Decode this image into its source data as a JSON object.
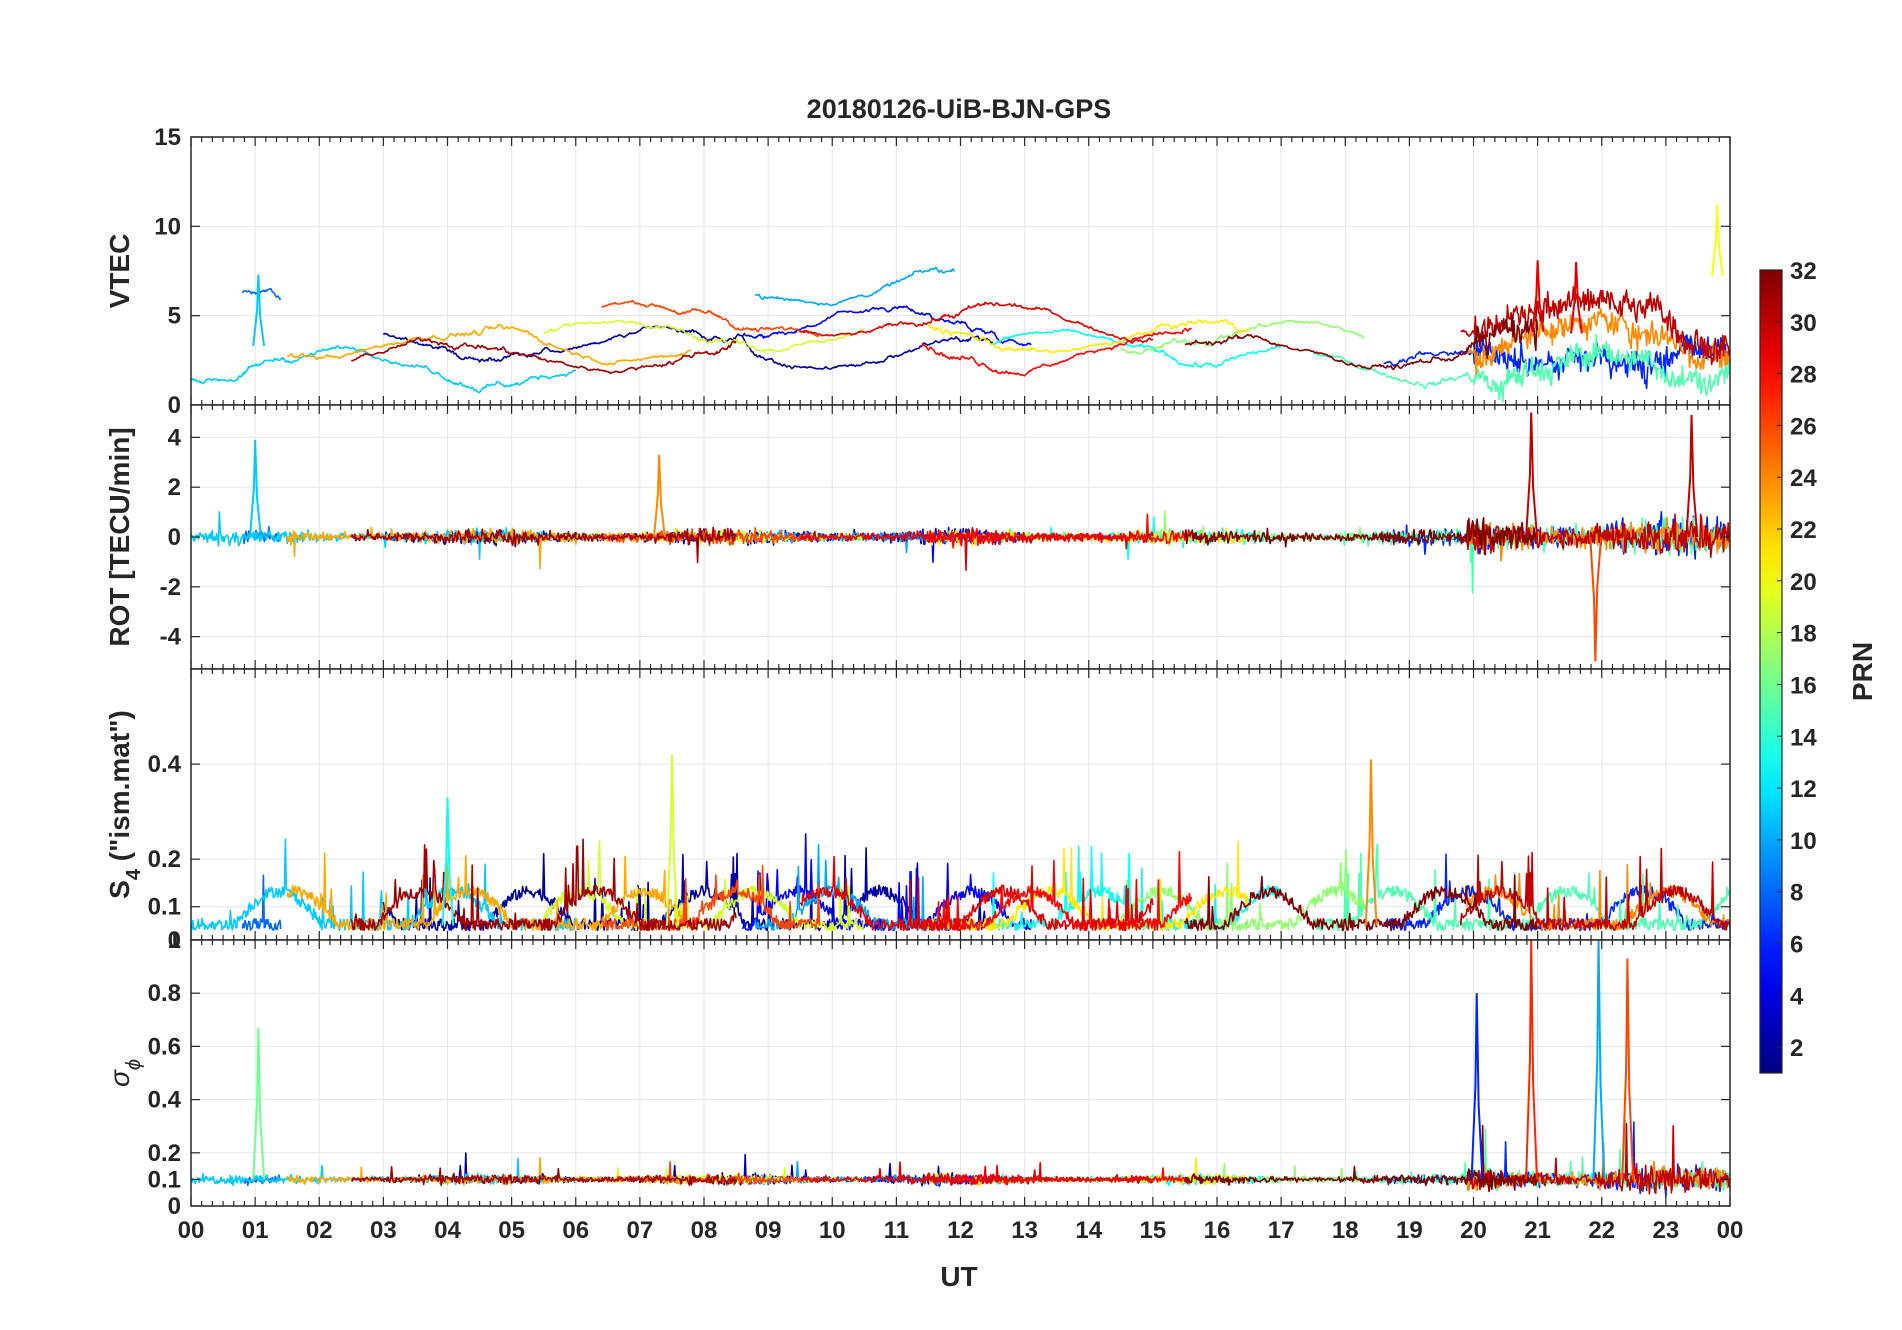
{
  "chart_data": {
    "type": "line",
    "title": "20180126-UiB-BJN-GPS",
    "xlabel": "UT",
    "x_tick_labels": [
      "00",
      "01",
      "02",
      "03",
      "04",
      "05",
      "06",
      "07",
      "08",
      "09",
      "10",
      "11",
      "12",
      "13",
      "14",
      "15",
      "16",
      "17",
      "18",
      "19",
      "20",
      "21",
      "22",
      "23",
      "00"
    ],
    "xlim": [
      0,
      24
    ],
    "grid": true,
    "panels": [
      {
        "name": "vtec",
        "ylabel": "VTEC",
        "ylim": [
          0,
          15
        ],
        "yticks": [
          0,
          5,
          10,
          15
        ],
        "ytick_labels": [
          "0",
          "5",
          "10",
          "15"
        ]
      },
      {
        "name": "rot",
        "ylabel": "ROT [TECU/min]",
        "ylim": [
          -5.3,
          5.3
        ],
        "yticks": [
          -4,
          -2,
          0,
          2,
          4
        ],
        "ytick_labels": [
          "-4",
          "-2",
          "0",
          "2",
          "4"
        ]
      },
      {
        "name": "s4",
        "ylabel_main": "S",
        "ylabel_sub": "4",
        "ylabel_rest": " (\"ism.mat\")",
        "ylim": [
          0.03,
          0.6
        ],
        "yticks": [
          0.1,
          0.2,
          0.4
        ],
        "ytick_labels": [
          "0.1",
          "0.2",
          "0.4"
        ],
        "bottom_label": "0"
      },
      {
        "name": "sigma_phi",
        "ylabel_main": "σ",
        "ylabel_sub": "ϕ",
        "ylim": [
          0,
          1
        ],
        "yticks": [
          0,
          0.1,
          0.2,
          0.4,
          0.6,
          0.8,
          1
        ],
        "ytick_labels": [
          "0",
          "0.1",
          "0.2",
          "0.4",
          "0.6",
          "0.8",
          "1"
        ]
      }
    ],
    "colorbar": {
      "label": "PRN",
      "colormap": "jet",
      "range": [
        1,
        32
      ],
      "ticks": [
        2,
        4,
        6,
        8,
        10,
        12,
        14,
        16,
        18,
        20,
        22,
        24,
        26,
        28,
        30,
        32
      ],
      "tick_labels": [
        "2",
        "4",
        "6",
        "8",
        "10",
        "12",
        "14",
        "16",
        "18",
        "20",
        "22",
        "24",
        "26",
        "28",
        "30",
        "32"
      ]
    },
    "series": [
      {
        "name": "PRN 2",
        "prn": 2,
        "start": 3.0,
        "end": 12.5,
        "vtec": 3.2
      },
      {
        "name": "PRN 5",
        "prn": 5,
        "start": 8.6,
        "end": 13.1,
        "vtec": 4.6
      },
      {
        "name": "PRN 6",
        "prn": 6,
        "start": 18.6,
        "end": 24.0,
        "vtec": 2.6
      },
      {
        "name": "PRN 8",
        "prn": 8,
        "start": 0.8,
        "end": 1.4,
        "vtec": 5.5
      },
      {
        "name": "PRN 10",
        "prn": 10,
        "start": 8.8,
        "end": 11.9,
        "vtec": 6.6
      },
      {
        "name": "PRN 11",
        "prn": 11,
        "start": 0.0,
        "end": 6.0,
        "vtec": 2.3
      },
      {
        "name": "PRN 13",
        "prn": 13,
        "start": 12.5,
        "end": 17.0,
        "vtec": 3.1
      },
      {
        "name": "PRN 15",
        "prn": 15,
        "start": 17.5,
        "end": 24.0,
        "vtec": 2.4
      },
      {
        "name": "PRN 17",
        "prn": 17,
        "start": 14.5,
        "end": 18.3,
        "vtec": 3.9
      },
      {
        "name": "PRN 19",
        "prn": 19,
        "start": 5.5,
        "end": 10.5,
        "vtec": 4.0
      },
      {
        "name": "PRN 21",
        "prn": 21,
        "start": 11.5,
        "end": 16.5,
        "vtec": 3.7
      },
      {
        "name": "PRN 23",
        "prn": 23,
        "start": 1.5,
        "end": 7.8,
        "vtec": 3.4
      },
      {
        "name": "PRN 24",
        "prn": 24,
        "start": 19.9,
        "end": 24.0,
        "vtec": 3.6
      },
      {
        "name": "PRN 26",
        "prn": 26,
        "start": 6.4,
        "end": 9.8,
        "vtec": 4.9
      },
      {
        "name": "PRN 28",
        "prn": 28,
        "start": 11.4,
        "end": 15.6,
        "vtec": 3.2
      },
      {
        "name": "PRN 29",
        "prn": 29,
        "start": 9.5,
        "end": 15.0,
        "vtec": 4.6
      },
      {
        "name": "PRN 30",
        "prn": 30,
        "start": 19.8,
        "end": 24.0,
        "vtec": 4.9
      },
      {
        "name": "PRN 31",
        "prn": 31,
        "start": 2.5,
        "end": 8.5,
        "vtec": 2.8
      },
      {
        "name": "PRN 32",
        "prn": 32,
        "start": 15.5,
        "end": 21.0,
        "vtec": 3.0
      }
    ],
    "annotated_peaks": {
      "vtec": [
        {
          "x": 23.8,
          "y": 11.2,
          "prn": 20
        },
        {
          "x": 21.0,
          "y": 8.1,
          "prn": 29
        },
        {
          "x": 21.6,
          "y": 8.0,
          "prn": 29
        },
        {
          "x": 1.05,
          "y": 7.3,
          "prn": 11
        }
      ],
      "rot": [
        {
          "x": 20.9,
          "y": 5.0,
          "prn": 30
        },
        {
          "x": 23.4,
          "y": 4.9,
          "prn": 30
        },
        {
          "x": 1.0,
          "y": 3.9,
          "prn": 11
        },
        {
          "x": 7.3,
          "y": 3.3,
          "prn": 24
        },
        {
          "x": 21.9,
          "y": -5.0,
          "prn": 26
        }
      ],
      "s4": [
        {
          "x": 7.5,
          "y": 0.42,
          "prn": 19
        },
        {
          "x": 18.4,
          "y": 0.41,
          "prn": 24
        },
        {
          "x": 4.0,
          "y": 0.33,
          "prn": 13
        }
      ],
      "sigma_phi": [
        {
          "x": 20.9,
          "y": 1.0,
          "prn": 27
        },
        {
          "x": 21.95,
          "y": 1.0,
          "prn": 10
        },
        {
          "x": 1.05,
          "y": 0.67,
          "prn": 16
        },
        {
          "x": 22.4,
          "y": 0.93,
          "prn": 26
        },
        {
          "x": 20.05,
          "y": 0.8,
          "prn": 6
        }
      ]
    }
  }
}
